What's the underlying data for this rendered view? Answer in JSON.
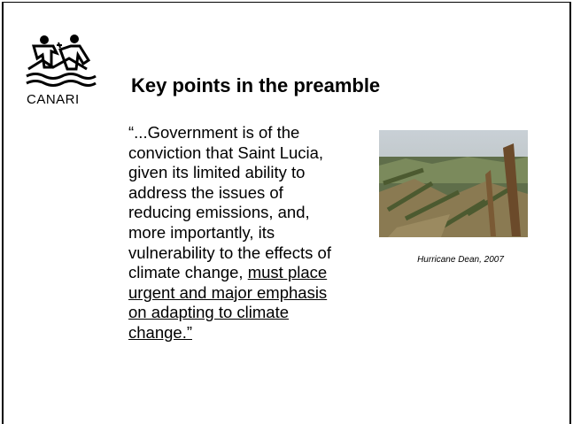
{
  "logo": {
    "label": "CANARI"
  },
  "title": "Key points in the preamble",
  "quote": {
    "lines": [
      [
        {
          "text": "“...Government is of the",
          "underline": false
        }
      ],
      [
        {
          "text": "conviction that Saint Lucia,",
          "underline": false
        }
      ],
      [
        {
          "text": "given its limited ability to",
          "underline": false
        }
      ],
      [
        {
          "text": "address the issues of",
          "underline": false
        }
      ],
      [
        {
          "text": "reducing emissions, and,",
          "underline": false
        }
      ],
      [
        {
          "text": "more importantly, its",
          "underline": false
        }
      ],
      [
        {
          "text": "vulnerability to the effects of",
          "underline": false
        }
      ],
      [
        {
          "text": "climate change, ",
          "underline": false
        },
        {
          "text": "must place",
          "underline": true
        }
      ],
      [
        {
          "text": "urgent and major emphasis",
          "underline": true
        }
      ],
      [
        {
          "text": "on adapting to climate",
          "underline": true
        }
      ],
      [
        {
          "text": "change.”",
          "underline": true
        }
      ]
    ]
  },
  "photo": {
    "caption": "Hurricane Dean, 2007"
  }
}
